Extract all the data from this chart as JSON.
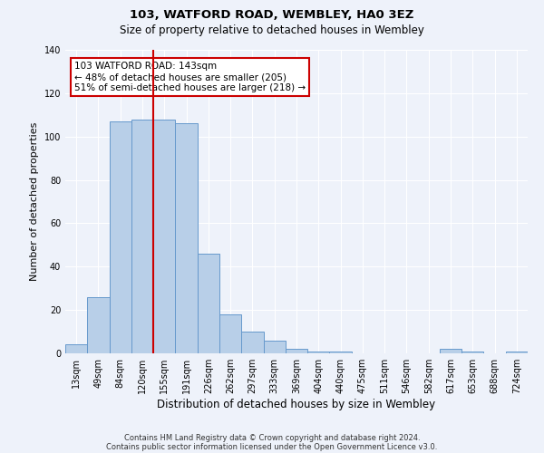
{
  "title1": "103, WATFORD ROAD, WEMBLEY, HA0 3EZ",
  "title2": "Size of property relative to detached houses in Wembley",
  "xlabel": "Distribution of detached houses by size in Wembley",
  "ylabel": "Number of detached properties",
  "bin_labels": [
    "13sqm",
    "49sqm",
    "84sqm",
    "120sqm",
    "155sqm",
    "191sqm",
    "226sqm",
    "262sqm",
    "297sqm",
    "333sqm",
    "369sqm",
    "404sqm",
    "440sqm",
    "475sqm",
    "511sqm",
    "546sqm",
    "582sqm",
    "617sqm",
    "653sqm",
    "688sqm",
    "724sqm"
  ],
  "bar_heights": [
    4,
    26,
    107,
    108,
    108,
    106,
    46,
    18,
    10,
    6,
    2,
    1,
    1,
    0,
    0,
    0,
    0,
    2,
    1,
    0,
    1
  ],
  "bar_color": "#b8cfe8",
  "bar_edge_color": "#6699cc",
  "ylim": [
    0,
    140
  ],
  "yticks": [
    0,
    20,
    40,
    60,
    80,
    100,
    120,
    140
  ],
  "vline_x_bin": 4,
  "annotation_line1": "103 WATFORD ROAD: 143sqm",
  "annotation_line2": "← 48% of detached houses are smaller (205)",
  "annotation_line3": "51% of semi-detached houses are larger (218) →",
  "annotation_box_color": "#cc0000",
  "footnote1": "Contains HM Land Registry data © Crown copyright and database right 2024.",
  "footnote2": "Contains public sector information licensed under the Open Government Licence v3.0.",
  "background_color": "#eef2fa",
  "grid_color": "#ffffff",
  "vline_color": "#cc0000"
}
